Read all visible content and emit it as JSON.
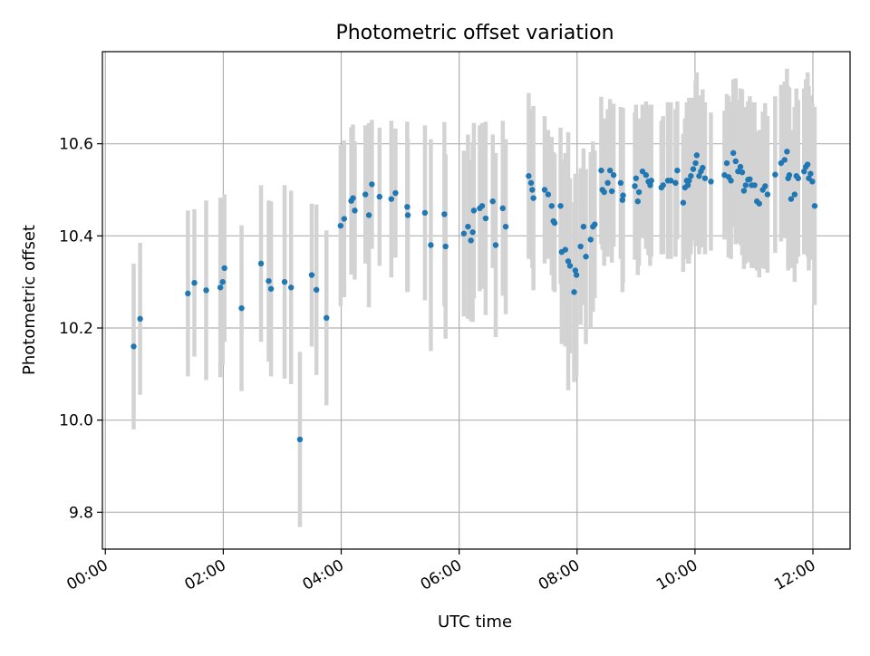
{
  "chart_data": {
    "type": "scatter",
    "title": "Photometric offset variation",
    "xlabel": "UTC time",
    "ylabel": "Photometric offset",
    "x_unit": "hours UTC",
    "xlim": [
      -0.05,
      12.63
    ],
    "ylim": [
      9.72,
      10.8
    ],
    "x_ticks": [
      0,
      2,
      4,
      6,
      8,
      10,
      12
    ],
    "x_tick_labels": [
      "00:00",
      "02:00",
      "04:00",
      "06:00",
      "08:00",
      "10:00",
      "12:00"
    ],
    "y_ticks": [
      9.8,
      10.0,
      10.2,
      10.4,
      10.6
    ],
    "y_tick_labels": [
      "9.8",
      "10.0",
      "10.2",
      "10.4",
      "10.6"
    ],
    "grid": true,
    "colors": {
      "point": "#1f77b4",
      "errorbar": "#d3d3d3",
      "grid": "#b0b0b0",
      "axes": "#000000"
    },
    "series": [
      {
        "points": [
          [
            0.48,
            10.16,
            0.18
          ],
          [
            0.59,
            10.22,
            0.165
          ],
          [
            1.4,
            10.275,
            0.18
          ],
          [
            1.51,
            10.298,
            0.16
          ],
          [
            1.71,
            10.282,
            0.195
          ],
          [
            1.95,
            10.288,
            0.195
          ],
          [
            1.99,
            10.3,
            0.18
          ],
          [
            2.02,
            10.33,
            0.16
          ],
          [
            2.31,
            10.243,
            0.18
          ],
          [
            2.64,
            10.34,
            0.17
          ],
          [
            2.77,
            10.302,
            0.175
          ],
          [
            2.81,
            10.285,
            0.19
          ],
          [
            3.04,
            10.3,
            0.21
          ],
          [
            3.15,
            10.288,
            0.21
          ],
          [
            3.3,
            9.958,
            0.19
          ],
          [
            3.5,
            10.315,
            0.155
          ],
          [
            3.58,
            10.283,
            0.185
          ],
          [
            3.75,
            10.222,
            0.19
          ],
          [
            3.99,
            10.422,
            0.175
          ],
          [
            4.05,
            10.437,
            0.17
          ],
          [
            4.17,
            10.476,
            0.16
          ],
          [
            4.2,
            10.482,
            0.16
          ],
          [
            4.23,
            10.455,
            0.15
          ],
          [
            4.41,
            10.49,
            0.15
          ],
          [
            4.47,
            10.445,
            0.2
          ],
          [
            4.52,
            10.512,
            0.14
          ],
          [
            4.65,
            10.485,
            0.15
          ],
          [
            4.85,
            10.48,
            0.17
          ],
          [
            4.92,
            10.493,
            0.14
          ],
          [
            5.13,
            10.445,
            0.165
          ],
          [
            5.12,
            10.463,
            0.185
          ],
          [
            5.42,
            10.45,
            0.19
          ],
          [
            5.52,
            10.38,
            0.23
          ],
          [
            5.75,
            10.447,
            0.2
          ],
          [
            5.77,
            10.377,
            0.2
          ],
          [
            6.08,
            10.405,
            0.18
          ],
          [
            6.15,
            10.42,
            0.2
          ],
          [
            6.2,
            10.39,
            0.175
          ],
          [
            6.23,
            10.408,
            0.195
          ],
          [
            6.25,
            10.455,
            0.19
          ],
          [
            6.35,
            10.46,
            0.18
          ],
          [
            6.39,
            10.465,
            0.18
          ],
          [
            6.45,
            10.438,
            0.21
          ],
          [
            6.57,
            10.475,
            0.145
          ],
          [
            6.62,
            10.38,
            0.2
          ],
          [
            6.74,
            10.46,
            0.19
          ],
          [
            6.79,
            10.42,
            0.19
          ],
          [
            7.18,
            10.53,
            0.18
          ],
          [
            7.22,
            10.515,
            0.16
          ],
          [
            7.26,
            10.482,
            0.2
          ],
          [
            7.24,
            10.5,
            0.17
          ],
          [
            7.45,
            10.5,
            0.16
          ],
          [
            7.51,
            10.49,
            0.14
          ],
          [
            7.57,
            10.465,
            0.15
          ],
          [
            7.6,
            10.432,
            0.15
          ],
          [
            7.62,
            10.428,
            0.15
          ],
          [
            7.72,
            10.465,
            0.17
          ],
          [
            7.74,
            10.365,
            0.2
          ],
          [
            7.8,
            10.37,
            0.21
          ],
          [
            7.85,
            10.345,
            0.28
          ],
          [
            7.88,
            10.335,
            0.19
          ],
          [
            7.95,
            10.278,
            0.195
          ],
          [
            7.97,
            10.325,
            0.21
          ],
          [
            7.99,
            10.315,
            0.22
          ],
          [
            8.06,
            10.377,
            0.17
          ],
          [
            8.11,
            10.42,
            0.17
          ],
          [
            8.15,
            10.355,
            0.19
          ],
          [
            8.23,
            10.392,
            0.19
          ],
          [
            8.27,
            10.42,
            0.185
          ],
          [
            8.3,
            10.425,
            0.16
          ],
          [
            8.41,
            10.542,
            0.16
          ],
          [
            8.43,
            10.5,
            0.13
          ],
          [
            8.46,
            10.495,
            0.16
          ],
          [
            8.52,
            10.515,
            0.16
          ],
          [
            8.56,
            10.542,
            0.155
          ],
          [
            8.62,
            10.532,
            0.155
          ],
          [
            8.59,
            10.497,
            0.155
          ],
          [
            8.74,
            10.515,
            0.165
          ],
          [
            8.77,
            10.478,
            0.2
          ],
          [
            8.78,
            10.488,
            0.19
          ],
          [
            8.98,
            10.508,
            0.16
          ],
          [
            9.0,
            10.525,
            0.16
          ],
          [
            9.03,
            10.475,
            0.16
          ],
          [
            9.05,
            10.495,
            0.16
          ],
          [
            9.11,
            10.54,
            0.145
          ],
          [
            9.17,
            10.532,
            0.16
          ],
          [
            9.21,
            10.518,
            0.16
          ],
          [
            9.24,
            10.51,
            0.175
          ],
          [
            9.26,
            10.52,
            0.165
          ],
          [
            9.43,
            10.505,
            0.145
          ],
          [
            9.46,
            10.51,
            0.15
          ],
          [
            9.54,
            10.52,
            0.17
          ],
          [
            9.59,
            10.52,
            0.17
          ],
          [
            9.67,
            10.515,
            0.16
          ],
          [
            9.7,
            10.542,
            0.15
          ],
          [
            9.8,
            10.472,
            0.15
          ],
          [
            9.83,
            10.505,
            0.15
          ],
          [
            9.86,
            10.52,
            0.17
          ],
          [
            9.88,
            10.51,
            0.17
          ],
          [
            9.9,
            10.52,
            0.18
          ],
          [
            9.93,
            10.53,
            0.17
          ],
          [
            9.97,
            10.545,
            0.155
          ],
          [
            10.01,
            10.558,
            0.18
          ],
          [
            10.03,
            10.575,
            0.18
          ],
          [
            10.07,
            10.53,
            0.17
          ],
          [
            10.1,
            10.54,
            0.165
          ],
          [
            10.13,
            10.548,
            0.17
          ],
          [
            10.17,
            10.525,
            0.165
          ],
          [
            10.27,
            10.518,
            0.15
          ],
          [
            10.5,
            10.532,
            0.14
          ],
          [
            10.54,
            10.558,
            0.15
          ],
          [
            10.57,
            10.528,
            0.175
          ],
          [
            10.61,
            10.52,
            0.17
          ],
          [
            10.65,
            10.58,
            0.16
          ],
          [
            10.69,
            10.562,
            0.18
          ],
          [
            10.73,
            10.54,
            0.155
          ],
          [
            10.77,
            10.55,
            0.17
          ],
          [
            10.8,
            10.538,
            0.18
          ],
          [
            10.83,
            10.498,
            0.17
          ],
          [
            10.86,
            10.51,
            0.17
          ],
          [
            10.9,
            10.522,
            0.17
          ],
          [
            10.93,
            10.523,
            0.18
          ],
          [
            10.96,
            10.51,
            0.18
          ],
          [
            11.01,
            10.51,
            0.18
          ],
          [
            11.05,
            10.475,
            0.15
          ],
          [
            11.09,
            10.47,
            0.16
          ],
          [
            11.15,
            10.5,
            0.17
          ],
          [
            11.19,
            10.508,
            0.18
          ],
          [
            11.23,
            10.49,
            0.17
          ],
          [
            11.36,
            10.533,
            0.17
          ],
          [
            11.46,
            10.558,
            0.17
          ],
          [
            11.52,
            10.565,
            0.17
          ],
          [
            11.56,
            10.583,
            0.18
          ],
          [
            11.58,
            10.525,
            0.2
          ],
          [
            11.6,
            10.532,
            0.19
          ],
          [
            11.63,
            10.48,
            0.15
          ],
          [
            11.69,
            10.49,
            0.19
          ],
          [
            11.72,
            10.53,
            0.19
          ],
          [
            11.75,
            10.525,
            0.17
          ],
          [
            11.85,
            10.54,
            0.18
          ],
          [
            11.88,
            10.55,
            0.19
          ],
          [
            11.91,
            10.555,
            0.2
          ],
          [
            11.93,
            10.525,
            0.2
          ],
          [
            11.96,
            10.535,
            0.17
          ],
          [
            11.99,
            10.518,
            0.17
          ],
          [
            12.03,
            10.465,
            0.215
          ]
        ]
      }
    ]
  }
}
